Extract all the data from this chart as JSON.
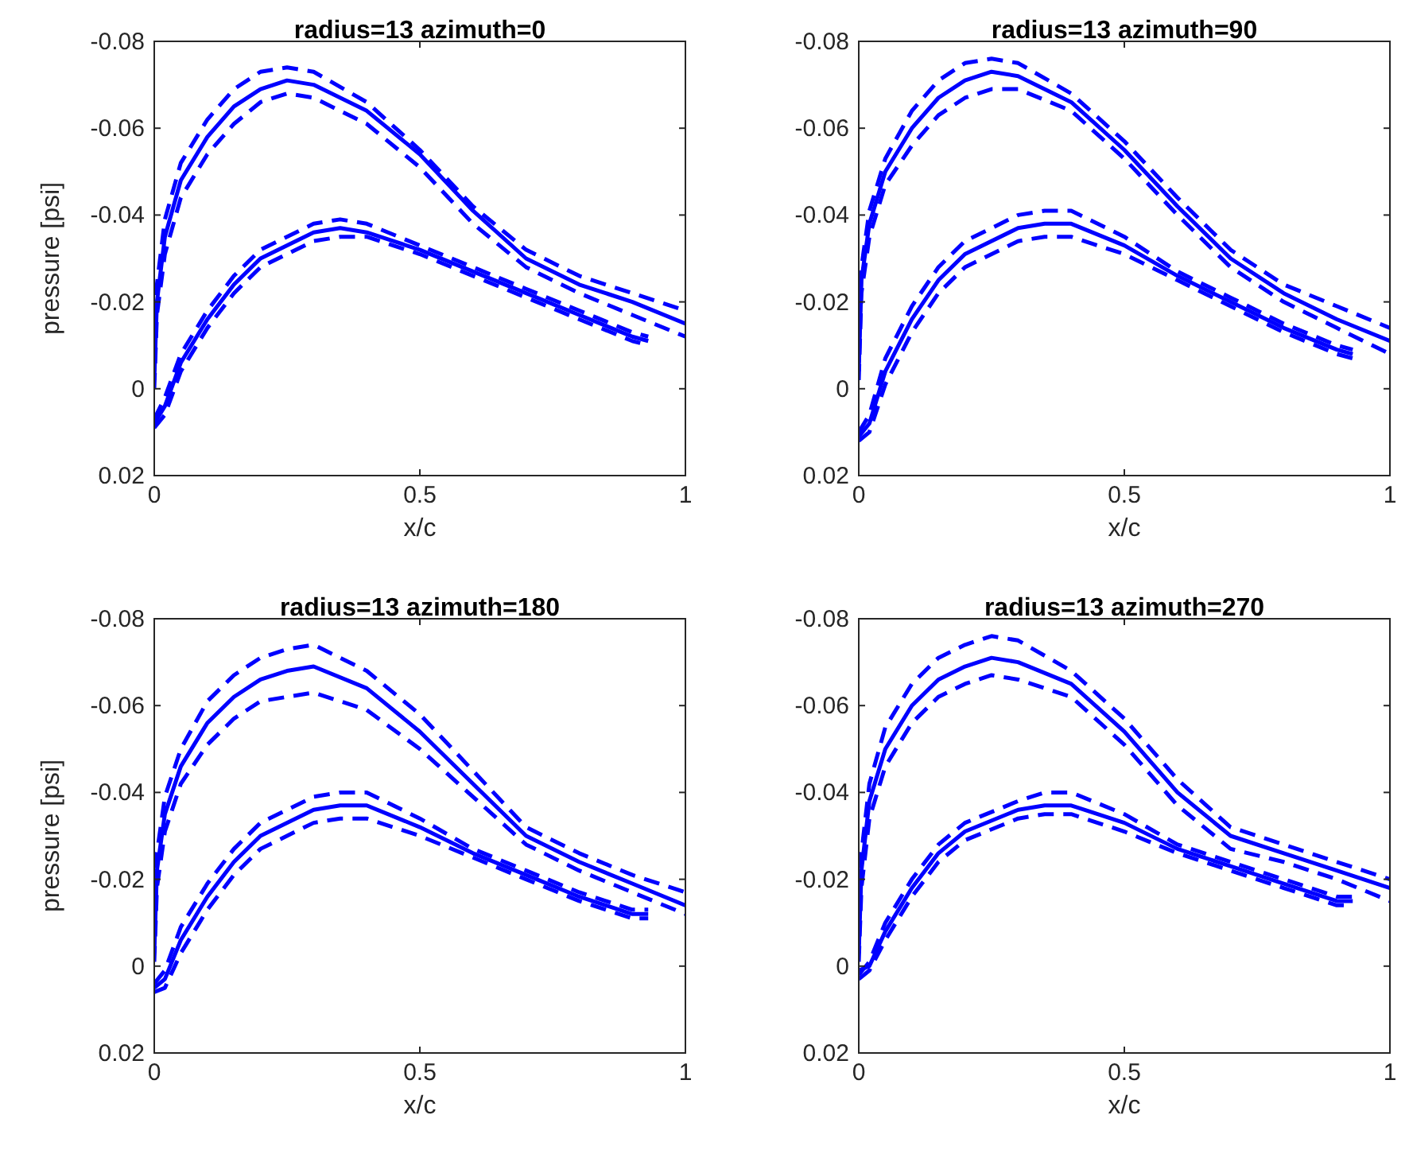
{
  "chart_data": [
    {
      "type": "line",
      "title": "radius=13 azimuth=0",
      "xlabel": "x/c",
      "ylabel": "pressure [psi]",
      "xlim": [
        0,
        1
      ],
      "ylim": [
        0.02,
        -0.08
      ],
      "xticks": [
        0,
        0.5,
        1
      ],
      "yticks": [
        0.02,
        0,
        -0.02,
        -0.04,
        -0.06,
        -0.08
      ],
      "series": [
        {
          "color": "#0000ff",
          "line_style": "solid",
          "x": [
            0,
            0.005,
            0.02,
            0.05,
            0.1,
            0.15,
            0.2,
            0.25,
            0.3,
            0.4,
            0.5,
            0.6,
            0.7,
            0.8,
            0.9,
            1
          ],
          "values": [
            -0.002,
            -0.02,
            -0.035,
            -0.048,
            -0.058,
            -0.065,
            -0.069,
            -0.071,
            -0.07,
            -0.064,
            -0.054,
            -0.041,
            -0.03,
            -0.024,
            -0.02,
            -0.015
          ]
        },
        {
          "color": "#0000ff",
          "line_style": "dashed",
          "x": [
            0,
            0.005,
            0.02,
            0.05,
            0.1,
            0.15,
            0.2,
            0.25,
            0.3,
            0.4,
            0.5,
            0.6,
            0.7,
            0.8,
            0.9,
            1
          ],
          "values": [
            -0.004,
            -0.024,
            -0.039,
            -0.052,
            -0.062,
            -0.069,
            -0.073,
            -0.074,
            -0.073,
            -0.066,
            -0.055,
            -0.042,
            -0.032,
            -0.026,
            -0.022,
            -0.018
          ]
        },
        {
          "color": "#0000ff",
          "line_style": "dashed",
          "x": [
            0,
            0.005,
            0.02,
            0.05,
            0.1,
            0.15,
            0.2,
            0.25,
            0.3,
            0.4,
            0.5,
            0.6,
            0.7,
            0.8,
            0.9,
            1
          ],
          "values": [
            0,
            -0.017,
            -0.031,
            -0.044,
            -0.054,
            -0.061,
            -0.066,
            -0.068,
            -0.067,
            -0.061,
            -0.051,
            -0.038,
            -0.028,
            -0.022,
            -0.017,
            -0.012
          ]
        },
        {
          "color": "#0000ff",
          "line_style": "solid",
          "x": [
            0,
            0.02,
            0.05,
            0.1,
            0.15,
            0.2,
            0.3,
            0.35,
            0.4,
            0.5,
            0.6,
            0.7,
            0.8,
            0.9,
            0.93
          ],
          "values": [
            0.008,
            0.004,
            -0.006,
            -0.016,
            -0.024,
            -0.03,
            -0.036,
            -0.037,
            -0.036,
            -0.032,
            -0.027,
            -0.022,
            -0.017,
            -0.012,
            -0.011
          ]
        },
        {
          "color": "#0000ff",
          "line_style": "dashed",
          "x": [
            0,
            0.02,
            0.05,
            0.1,
            0.15,
            0.2,
            0.3,
            0.35,
            0.4,
            0.5,
            0.6,
            0.7,
            0.8,
            0.9,
            0.93
          ],
          "values": [
            0.007,
            0.002,
            -0.008,
            -0.018,
            -0.026,
            -0.032,
            -0.038,
            -0.039,
            -0.038,
            -0.033,
            -0.028,
            -0.023,
            -0.018,
            -0.013,
            -0.012
          ]
        },
        {
          "color": "#0000ff",
          "line_style": "dashed",
          "x": [
            0,
            0.02,
            0.05,
            0.1,
            0.15,
            0.2,
            0.3,
            0.35,
            0.4,
            0.5,
            0.6,
            0.7,
            0.8,
            0.9,
            0.93
          ],
          "values": [
            0.009,
            0.006,
            -0.004,
            -0.014,
            -0.022,
            -0.028,
            -0.034,
            -0.035,
            -0.035,
            -0.031,
            -0.026,
            -0.021,
            -0.016,
            -0.011,
            -0.01
          ]
        }
      ]
    },
    {
      "type": "line",
      "title": "radius=13 azimuth=90",
      "xlabel": "x/c",
      "xlim": [
        0,
        1
      ],
      "ylim": [
        0.02,
        -0.08
      ],
      "xticks": [
        0,
        0.5,
        1
      ],
      "yticks": [
        0.02,
        0,
        -0.02,
        -0.04,
        -0.06,
        -0.08
      ],
      "series": [
        {
          "color": "#0000ff",
          "line_style": "solid",
          "x": [
            0,
            0.005,
            0.02,
            0.05,
            0.1,
            0.15,
            0.2,
            0.25,
            0.3,
            0.4,
            0.5,
            0.6,
            0.7,
            0.8,
            0.9,
            1
          ],
          "values": [
            -0.004,
            -0.025,
            -0.038,
            -0.05,
            -0.06,
            -0.067,
            -0.071,
            -0.073,
            -0.072,
            -0.066,
            -0.055,
            -0.042,
            -0.03,
            -0.022,
            -0.016,
            -0.011
          ]
        },
        {
          "color": "#0000ff",
          "line_style": "dashed",
          "x": [
            0,
            0.005,
            0.02,
            0.05,
            0.1,
            0.15,
            0.2,
            0.25,
            0.3,
            0.4,
            0.5,
            0.6,
            0.7,
            0.8,
            0.9,
            1
          ],
          "values": [
            -0.006,
            -0.028,
            -0.041,
            -0.053,
            -0.064,
            -0.071,
            -0.075,
            -0.076,
            -0.075,
            -0.068,
            -0.057,
            -0.044,
            -0.032,
            -0.024,
            -0.019,
            -0.014
          ]
        },
        {
          "color": "#0000ff",
          "line_style": "dashed",
          "x": [
            0,
            0.005,
            0.02,
            0.05,
            0.1,
            0.15,
            0.2,
            0.25,
            0.3,
            0.4,
            0.5,
            0.6,
            0.7,
            0.8,
            0.9,
            1
          ],
          "values": [
            -0.002,
            -0.022,
            -0.035,
            -0.047,
            -0.056,
            -0.063,
            -0.067,
            -0.069,
            -0.069,
            -0.064,
            -0.053,
            -0.04,
            -0.028,
            -0.02,
            -0.014,
            -0.008
          ]
        },
        {
          "color": "#0000ff",
          "line_style": "solid",
          "x": [
            0,
            0.02,
            0.05,
            0.1,
            0.15,
            0.2,
            0.3,
            0.35,
            0.4,
            0.5,
            0.6,
            0.7,
            0.8,
            0.9,
            0.93
          ],
          "values": [
            0.011,
            0.008,
            -0.004,
            -0.016,
            -0.025,
            -0.031,
            -0.037,
            -0.038,
            -0.038,
            -0.033,
            -0.026,
            -0.02,
            -0.014,
            -0.009,
            -0.008
          ]
        },
        {
          "color": "#0000ff",
          "line_style": "dashed",
          "x": [
            0,
            0.02,
            0.05,
            0.1,
            0.15,
            0.2,
            0.3,
            0.35,
            0.4,
            0.5,
            0.6,
            0.7,
            0.8,
            0.9,
            0.93
          ],
          "values": [
            0.01,
            0.006,
            -0.007,
            -0.019,
            -0.028,
            -0.034,
            -0.04,
            -0.041,
            -0.041,
            -0.035,
            -0.027,
            -0.021,
            -0.015,
            -0.01,
            -0.009
          ]
        },
        {
          "color": "#0000ff",
          "line_style": "dashed",
          "x": [
            0,
            0.02,
            0.05,
            0.1,
            0.15,
            0.2,
            0.3,
            0.35,
            0.4,
            0.5,
            0.6,
            0.7,
            0.8,
            0.9,
            0.93
          ],
          "values": [
            0.012,
            0.01,
            -0.001,
            -0.013,
            -0.022,
            -0.028,
            -0.034,
            -0.035,
            -0.035,
            -0.031,
            -0.025,
            -0.019,
            -0.013,
            -0.008,
            -0.007
          ]
        }
      ]
    },
    {
      "type": "line",
      "title": "radius=13 azimuth=180",
      "xlabel": "x/c",
      "ylabel": "pressure [psi]",
      "xlim": [
        0,
        1
      ],
      "ylim": [
        0.02,
        -0.08
      ],
      "xticks": [
        0,
        0.5,
        1
      ],
      "yticks": [
        0.02,
        0,
        -0.02,
        -0.04,
        -0.06,
        -0.08
      ],
      "series": [
        {
          "color": "#0000ff",
          "line_style": "solid",
          "x": [
            0,
            0.005,
            0.02,
            0.05,
            0.1,
            0.15,
            0.2,
            0.25,
            0.3,
            0.4,
            0.5,
            0.6,
            0.7,
            0.8,
            0.9,
            1
          ],
          "values": [
            -0.003,
            -0.022,
            -0.035,
            -0.046,
            -0.056,
            -0.062,
            -0.066,
            -0.068,
            -0.069,
            -0.064,
            -0.054,
            -0.042,
            -0.03,
            -0.024,
            -0.019,
            -0.014
          ]
        },
        {
          "color": "#0000ff",
          "line_style": "dashed",
          "x": [
            0,
            0.005,
            0.02,
            0.05,
            0.1,
            0.15,
            0.2,
            0.25,
            0.3,
            0.4,
            0.5,
            0.6,
            0.7,
            0.8,
            0.9,
            1
          ],
          "values": [
            -0.005,
            -0.026,
            -0.039,
            -0.05,
            -0.061,
            -0.067,
            -0.071,
            -0.073,
            -0.074,
            -0.068,
            -0.058,
            -0.045,
            -0.032,
            -0.026,
            -0.021,
            -0.017
          ]
        },
        {
          "color": "#0000ff",
          "line_style": "dashed",
          "x": [
            0,
            0.005,
            0.02,
            0.05,
            0.1,
            0.15,
            0.2,
            0.25,
            0.3,
            0.4,
            0.5,
            0.6,
            0.7,
            0.8,
            0.9,
            1
          ],
          "values": [
            -0.001,
            -0.018,
            -0.031,
            -0.042,
            -0.051,
            -0.057,
            -0.061,
            -0.062,
            -0.063,
            -0.059,
            -0.05,
            -0.039,
            -0.028,
            -0.022,
            -0.017,
            -0.012
          ]
        },
        {
          "color": "#0000ff",
          "line_style": "solid",
          "x": [
            0,
            0.02,
            0.05,
            0.1,
            0.15,
            0.2,
            0.3,
            0.35,
            0.4,
            0.5,
            0.6,
            0.7,
            0.8,
            0.9,
            0.93
          ],
          "values": [
            0.005,
            0.003,
            -0.006,
            -0.016,
            -0.024,
            -0.03,
            -0.036,
            -0.037,
            -0.037,
            -0.032,
            -0.026,
            -0.021,
            -0.016,
            -0.012,
            -0.012
          ]
        },
        {
          "color": "#0000ff",
          "line_style": "dashed",
          "x": [
            0,
            0.02,
            0.05,
            0.1,
            0.15,
            0.2,
            0.3,
            0.35,
            0.4,
            0.5,
            0.6,
            0.7,
            0.8,
            0.9,
            0.93
          ],
          "values": [
            0.004,
            0.001,
            -0.009,
            -0.019,
            -0.027,
            -0.033,
            -0.039,
            -0.04,
            -0.04,
            -0.034,
            -0.027,
            -0.022,
            -0.017,
            -0.013,
            -0.013
          ]
        },
        {
          "color": "#0000ff",
          "line_style": "dashed",
          "x": [
            0,
            0.02,
            0.05,
            0.1,
            0.15,
            0.2,
            0.3,
            0.35,
            0.4,
            0.5,
            0.6,
            0.7,
            0.8,
            0.9,
            0.93
          ],
          "values": [
            0.006,
            0.005,
            -0.003,
            -0.013,
            -0.021,
            -0.027,
            -0.033,
            -0.034,
            -0.034,
            -0.03,
            -0.025,
            -0.02,
            -0.015,
            -0.011,
            -0.011
          ]
        }
      ]
    },
    {
      "type": "line",
      "title": "radius=13 azimuth=270",
      "xlabel": "x/c",
      "xlim": [
        0,
        1
      ],
      "ylim": [
        0.02,
        -0.08
      ],
      "xticks": [
        0,
        0.5,
        1
      ],
      "yticks": [
        0.02,
        0,
        -0.02,
        -0.04,
        -0.06,
        -0.08
      ],
      "series": [
        {
          "color": "#0000ff",
          "line_style": "solid",
          "x": [
            0,
            0.005,
            0.02,
            0.05,
            0.1,
            0.15,
            0.2,
            0.25,
            0.3,
            0.4,
            0.5,
            0.6,
            0.7,
            0.8,
            0.9,
            1
          ],
          "values": [
            -0.003,
            -0.022,
            -0.038,
            -0.05,
            -0.06,
            -0.066,
            -0.069,
            -0.071,
            -0.07,
            -0.065,
            -0.054,
            -0.04,
            -0.03,
            -0.026,
            -0.022,
            -0.018
          ]
        },
        {
          "color": "#0000ff",
          "line_style": "dashed",
          "x": [
            0,
            0.005,
            0.02,
            0.05,
            0.1,
            0.15,
            0.2,
            0.25,
            0.3,
            0.4,
            0.5,
            0.6,
            0.7,
            0.8,
            0.9,
            1
          ],
          "values": [
            -0.005,
            -0.026,
            -0.042,
            -0.055,
            -0.065,
            -0.071,
            -0.074,
            -0.076,
            -0.075,
            -0.068,
            -0.057,
            -0.043,
            -0.032,
            -0.028,
            -0.024,
            -0.02
          ]
        },
        {
          "color": "#0000ff",
          "line_style": "dashed",
          "x": [
            0,
            0.005,
            0.02,
            0.05,
            0.1,
            0.15,
            0.2,
            0.25,
            0.3,
            0.4,
            0.5,
            0.6,
            0.7,
            0.8,
            0.9,
            1
          ],
          "values": [
            -0.001,
            -0.018,
            -0.034,
            -0.046,
            -0.056,
            -0.062,
            -0.065,
            -0.067,
            -0.066,
            -0.062,
            -0.051,
            -0.037,
            -0.027,
            -0.024,
            -0.02,
            -0.015
          ]
        },
        {
          "color": "#0000ff",
          "line_style": "solid",
          "x": [
            0,
            0.02,
            0.05,
            0.1,
            0.15,
            0.2,
            0.3,
            0.35,
            0.4,
            0.5,
            0.6,
            0.7,
            0.8,
            0.9,
            0.93
          ],
          "values": [
            0.001,
            0.0,
            -0.008,
            -0.018,
            -0.026,
            -0.031,
            -0.036,
            -0.037,
            -0.037,
            -0.033,
            -0.027,
            -0.023,
            -0.019,
            -0.015,
            -0.015
          ]
        },
        {
          "color": "#0000ff",
          "line_style": "dashed",
          "x": [
            0,
            0.02,
            0.05,
            0.1,
            0.15,
            0.2,
            0.3,
            0.35,
            0.4,
            0.5,
            0.6,
            0.7,
            0.8,
            0.9,
            0.93
          ],
          "values": [
            0.002,
            -0.001,
            -0.01,
            -0.02,
            -0.028,
            -0.033,
            -0.038,
            -0.04,
            -0.04,
            -0.035,
            -0.028,
            -0.024,
            -0.02,
            -0.016,
            -0.016
          ]
        },
        {
          "color": "#0000ff",
          "line_style": "dashed",
          "x": [
            0,
            0.02,
            0.05,
            0.1,
            0.15,
            0.2,
            0.3,
            0.35,
            0.4,
            0.5,
            0.6,
            0.7,
            0.8,
            0.9,
            0.93
          ],
          "values": [
            0.003,
            0.001,
            -0.006,
            -0.016,
            -0.024,
            -0.029,
            -0.034,
            -0.035,
            -0.035,
            -0.031,
            -0.026,
            -0.022,
            -0.018,
            -0.014,
            -0.014
          ]
        }
      ]
    }
  ]
}
